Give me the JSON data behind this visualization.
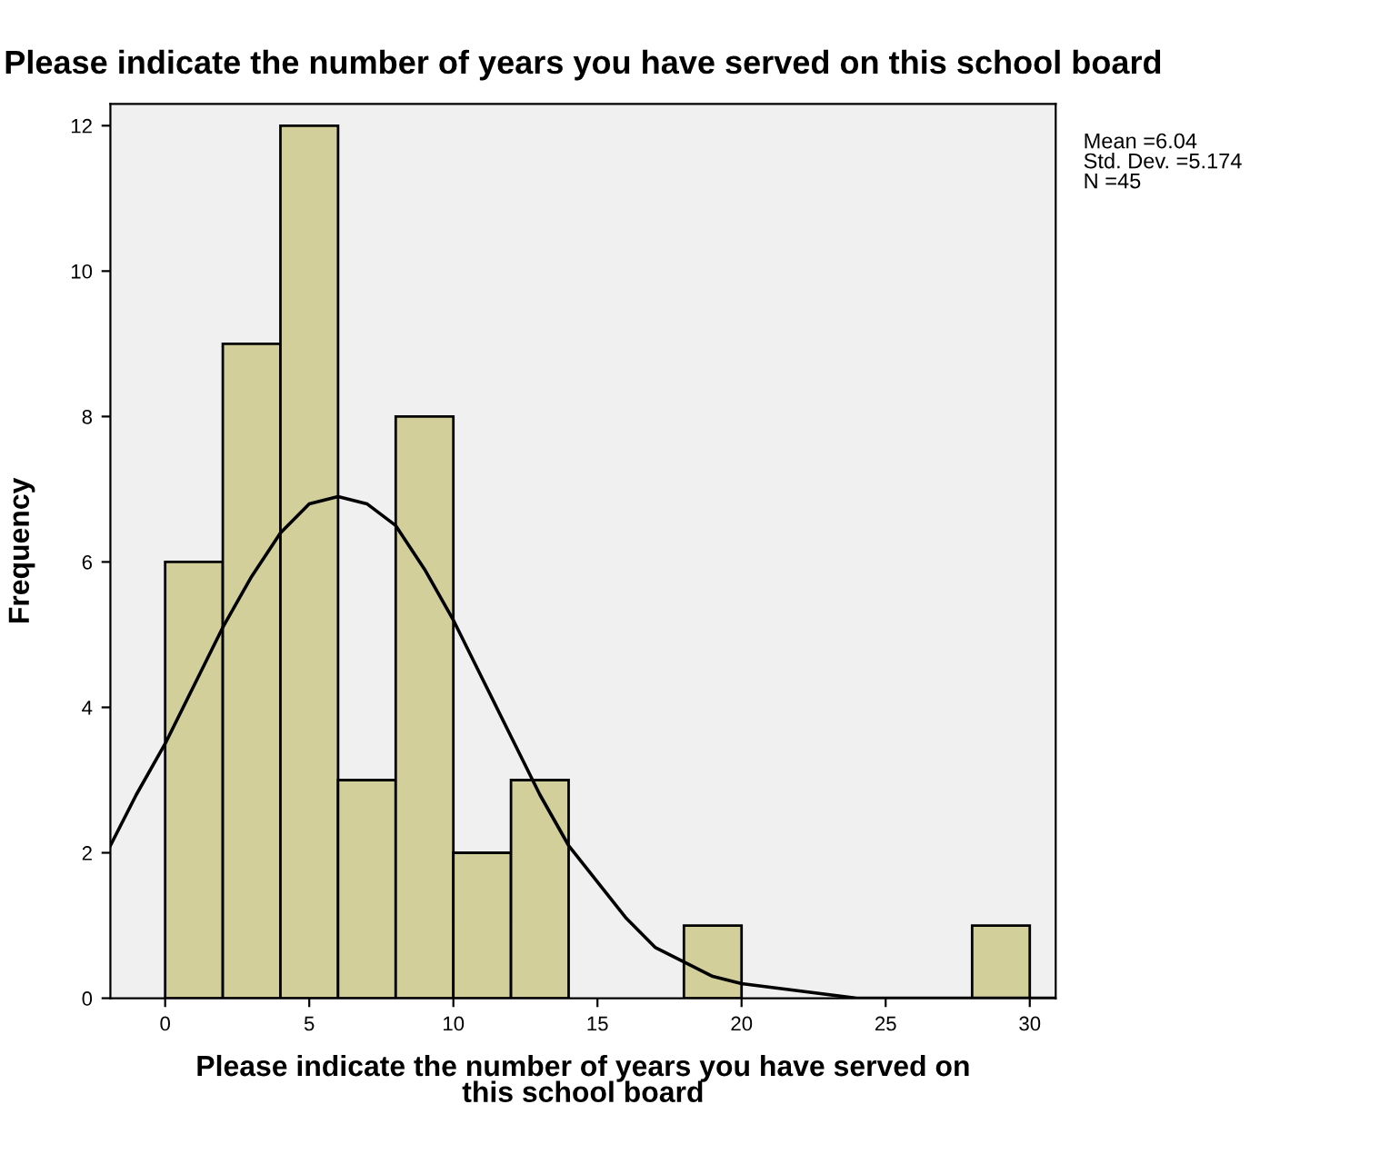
{
  "chart_data": {
    "type": "histogram",
    "title": "Please indicate the number of years you have served on this school board",
    "xlabel": "Please indicate the number of years you have served on\nthis school board",
    "ylabel": "Frequency",
    "series": [
      {
        "color": "#d3cf9b",
        "bins": [
          0,
          2,
          4,
          6,
          8,
          10,
          12,
          14,
          16,
          18,
          20,
          22,
          24,
          26,
          28,
          30
        ],
        "values": [
          6,
          9,
          12,
          3,
          8,
          2,
          3,
          0,
          0,
          1,
          0,
          0,
          0,
          0,
          1
        ]
      },
      {
        "type": "line",
        "color": "#000000",
        "x": [
          -1.9,
          -1,
          0,
          1,
          2,
          3,
          4,
          5,
          6,
          7,
          8,
          9,
          10,
          11,
          12,
          13,
          14,
          15,
          16,
          17,
          18,
          19,
          20,
          22,
          24,
          26,
          28,
          30.9
        ],
        "values": [
          2.1,
          2.8,
          3.5,
          4.3,
          5.1,
          5.8,
          6.4,
          6.8,
          6.9,
          6.8,
          6.5,
          5.9,
          5.2,
          4.4,
          3.6,
          2.8,
          2.1,
          1.6,
          1.1,
          0.7,
          0.5,
          0.3,
          0.2,
          0.1,
          0,
          0,
          0,
          0
        ]
      }
    ],
    "annotations": [
      "Mean =6.04\nStd. Dev. =5.174\nN =45"
    ],
    "xlim": [
      -1.9,
      30.9
    ],
    "ylim": [
      0,
      12.3
    ],
    "xticks": [
      0,
      5,
      10,
      15,
      20,
      25,
      30
    ],
    "yticks": [
      0,
      2,
      4,
      6,
      8,
      10,
      12
    ],
    "grid": false,
    "legend": false,
    "marker": "none",
    "line_style": "solid"
  }
}
